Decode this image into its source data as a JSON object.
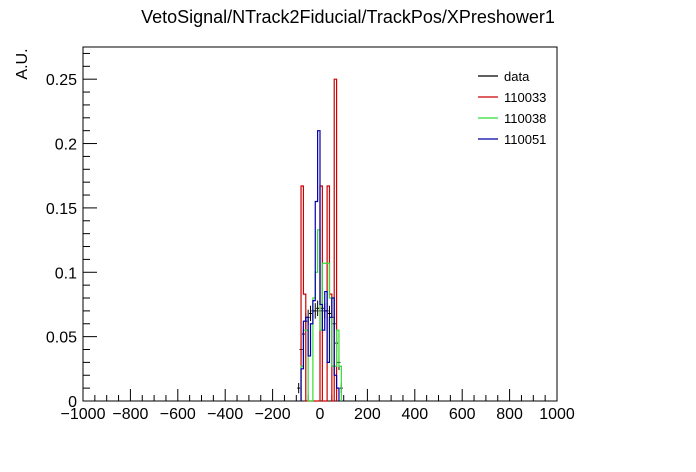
{
  "chart_data": {
    "type": "histogram",
    "title": "VetoSignal/NTrack2Fiducial/TrackPos/XPreshower1",
    "xlabel": "",
    "ylabel": "A.U.",
    "xlim": [
      -1000,
      1000
    ],
    "ylim": [
      0,
      0.275
    ],
    "x_ticks": [
      -1000,
      -800,
      -600,
      -400,
      -200,
      0,
      200,
      400,
      600,
      800,
      1000
    ],
    "x_tick_labels": [
      "−1000",
      "−800",
      "−600",
      "−400",
      "−200",
      "0",
      "200",
      "400",
      "600",
      "800",
      "1000"
    ],
    "y_ticks": [
      0,
      0.05,
      0.1,
      0.15,
      0.2,
      0.25
    ],
    "y_tick_labels": [
      "0",
      "0.05",
      "0.1",
      "0.15",
      "0.2",
      "0.25"
    ],
    "grid": false,
    "legend_position": "top-right",
    "series": [
      {
        "name": "data",
        "color": "#000000",
        "style": "points",
        "x": [
          -90,
          -80,
          -70,
          -60,
          -50,
          -40,
          -30,
          -20,
          -10,
          0,
          10,
          20,
          30,
          40,
          50,
          60,
          70,
          80,
          90
        ],
        "values": [
          0.01,
          0.04,
          0.052,
          0.062,
          0.065,
          0.068,
          0.07,
          0.07,
          0.072,
          0.07,
          0.072,
          0.07,
          0.07,
          0.068,
          0.065,
          0.06,
          0.045,
          0.03,
          0.01
        ],
        "errors": [
          0.004,
          0.006,
          0.006,
          0.006,
          0.006,
          0.006,
          0.006,
          0.006,
          0.006,
          0.006,
          0.006,
          0.006,
          0.006,
          0.006,
          0.006,
          0.006,
          0.006,
          0.006,
          0.004
        ]
      },
      {
        "name": "110033",
        "color": "#cc0000",
        "style": "step",
        "bin_edges": [
          -80,
          -70,
          -60,
          -50,
          -40,
          -30,
          -20,
          -10,
          0,
          10,
          20,
          30,
          40,
          50,
          60,
          70
        ],
        "values": [
          0.167,
          0.083,
          0,
          0,
          0,
          0,
          0,
          0,
          0.167,
          0,
          0,
          0.167,
          0.083,
          0,
          0.25
        ]
      },
      {
        "name": "110038",
        "color": "#33dd33",
        "style": "step",
        "bin_edges": [
          -80,
          -70,
          -60,
          -50,
          -40,
          -30,
          -20,
          -10,
          0,
          10,
          20,
          30,
          40,
          50,
          60,
          70,
          80,
          90
        ],
        "values": [
          0.027,
          0.055,
          0.055,
          0,
          0,
          0.08,
          0.1,
          0.133,
          0.055,
          0.107,
          0.107,
          0.107,
          0.08,
          0.027,
          0.027,
          0.055,
          0.027
        ]
      },
      {
        "name": "110051",
        "color": "#0000aa",
        "style": "step",
        "bin_edges": [
          -80,
          -70,
          -60,
          -50,
          -40,
          -30,
          -20,
          -10,
          0,
          10,
          20,
          30,
          40,
          50,
          60,
          70,
          80
        ],
        "values": [
          0.025,
          0.062,
          0.065,
          0.035,
          0.06,
          0.078,
          0.155,
          0.21,
          0.075,
          0.055,
          0.085,
          0.03,
          0.065,
          0.08,
          0.02,
          0.01
        ]
      }
    ]
  }
}
